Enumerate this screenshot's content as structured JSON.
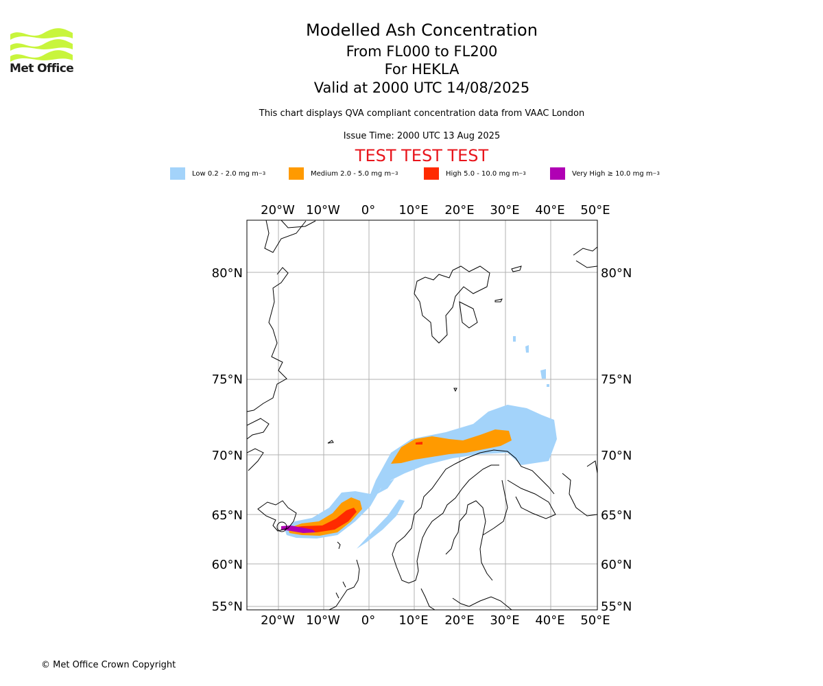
{
  "brand": {
    "name": "Met Office",
    "logo_color": "#c8f53c",
    "copyright": "© Met Office Crown Copyright"
  },
  "header": {
    "title": "Modelled Ash Concentration",
    "levels": "From FL000 to FL200",
    "volcano": "For HEKLA",
    "valid": "Valid at 2000 UTC 14/08/2025",
    "description": "This chart displays QVA compliant concentration data from VAAC London",
    "issue_time": "Issue Time: 2000 UTC 13 Aug 2025",
    "test_banner": "TEST TEST TEST",
    "test_color": "#e8141b"
  },
  "legend": [
    {
      "label": "Low 0.2 - 2.0 mg m",
      "unit_exp": "−3",
      "color": "#a3d3fa"
    },
    {
      "label": "Medium 2.0 - 5.0 mg m",
      "unit_exp": "−3",
      "color": "#ff9a00"
    },
    {
      "label": "High 5.0 - 10.0 mg m",
      "unit_exp": "−3",
      "color": "#ff2a00"
    },
    {
      "label": "Very High  ≥  10.0 mg m",
      "unit_exp": "−3",
      "color": "#b000b4"
    }
  ],
  "map": {
    "lon_labels": [
      "20°W",
      "10°W",
      "0°",
      "10°E",
      "20°E",
      "30°E",
      "40°E",
      "50°E"
    ],
    "lat_labels": [
      "80°N",
      "75°N",
      "70°N",
      "65°N",
      "60°N",
      "55°N"
    ],
    "source_marker": "Hekla"
  }
}
